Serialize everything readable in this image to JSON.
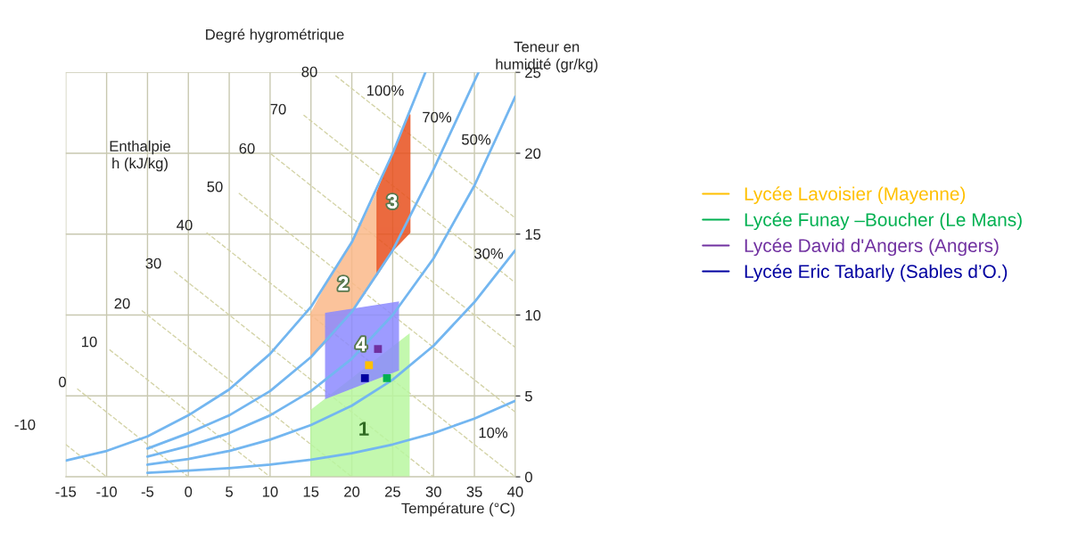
{
  "chart_data": {
    "type": "line",
    "xlabel": "Température (°C)",
    "ylabel": "Teneur en\nhumidité (gr/kg)",
    "xlim": [
      -15,
      40
    ],
    "xticks": [
      -15,
      -10,
      -5,
      0,
      5,
      10,
      15,
      20,
      25,
      30,
      35,
      40
    ],
    "ylim": [
      0,
      25
    ],
    "yticks": [
      0,
      5,
      10,
      15,
      20,
      25
    ],
    "grid": true,
    "legend": "right",
    "series": [
      {
        "type": "line",
        "color": "#d4d4a8",
        "line_style": "dashed",
        "x": [
          -15,
          -10
        ],
        "values": [
          2.0,
          0
        ]
      },
      {
        "type": "line",
        "color": "#d4d4a8",
        "line_style": "dashed",
        "x": [
          -13.6,
          0
        ],
        "values": [
          5.44,
          0
        ]
      },
      {
        "type": "line",
        "color": "#d4d4a8",
        "line_style": "dashed",
        "x": [
          -9.65,
          10
        ],
        "values": [
          7.86,
          0
        ]
      },
      {
        "type": "line",
        "color": "#d4d4a8",
        "line_style": "dashed",
        "x": [
          -5.7,
          20
        ],
        "values": [
          10.28,
          0
        ]
      },
      {
        "type": "line",
        "color": "#d4d4a8",
        "line_style": "dashed",
        "x": [
          -1.74,
          30
        ],
        "values": [
          12.7,
          0
        ]
      },
      {
        "type": "line",
        "color": "#d4d4a8",
        "line_style": "dashed",
        "x": [
          2.22,
          40
        ],
        "values": [
          15.1,
          0
        ]
      },
      {
        "type": "line",
        "color": "#d4d4a8",
        "line_style": "dashed",
        "x": [
          6.17,
          40
        ],
        "values": [
          17.53,
          4.0
        ]
      },
      {
        "type": "line",
        "color": "#d4d4a8",
        "line_style": "dashed",
        "x": [
          10.1,
          40
        ],
        "values": [
          19.96,
          8.0
        ]
      },
      {
        "type": "line",
        "color": "#d4d4a8",
        "line_style": "dashed",
        "x": [
          14.1,
          40
        ],
        "values": [
          22.36,
          12.0
        ]
      },
      {
        "type": "line",
        "color": "#d4d4a8",
        "line_style": "dashed",
        "x": [
          18.0,
          40
        ],
        "values": [
          24.8,
          16.0
        ]
      },
      {
        "type": "area",
        "color": "#b9f7a0",
        "x": [
          15,
          27,
          27,
          15
        ],
        "values": [
          4.1,
          8.8,
          0,
          0
        ]
      },
      {
        "type": "area",
        "color": "#fbb98a",
        "x": [
          15,
          17,
          19,
          21,
          23.1,
          23.1,
          21,
          19,
          17,
          15
        ],
        "values": [
          10.1,
          12.0,
          13.7,
          15.4,
          17.6,
          12.5,
          10.9,
          9.6,
          8.4,
          7.4
        ]
      },
      {
        "type": "area",
        "color": "#e8501e",
        "x": [
          23.1,
          25,
          27.1,
          27.1,
          25,
          23.1
        ],
        "values": [
          17.6,
          20.0,
          22.4,
          15.1,
          14.0,
          12.5
        ]
      },
      {
        "type": "area",
        "color": "#8c8aff",
        "x": [
          16.8,
          25.7,
          25.7,
          16.8
        ],
        "values": [
          10.1,
          10.8,
          6.6,
          4.85
        ]
      },
      {
        "color": "#73b6f0",
        "line_style": "solid",
        "x": [
          -15,
          -10,
          -5,
          0,
          5,
          10,
          15,
          20,
          25,
          29
        ],
        "values": [
          1.0,
          1.6,
          2.5,
          3.8,
          5.4,
          7.6,
          10.5,
          14.5,
          20.0,
          25.0
        ]
      },
      {
        "color": "#73b6f0",
        "line_style": "solid",
        "x": [
          -5,
          0,
          5,
          10,
          15,
          20,
          25,
          30,
          35.5
        ],
        "values": [
          1.75,
          2.7,
          3.8,
          5.3,
          7.4,
          10.2,
          14.0,
          19.0,
          25.0
        ]
      },
      {
        "color": "#73b6f0",
        "line_style": "solid",
        "x": [
          -5,
          0,
          5,
          10,
          15,
          20,
          25,
          30,
          35,
          40
        ],
        "values": [
          1.25,
          1.9,
          2.7,
          3.8,
          5.3,
          7.3,
          10.0,
          13.5,
          18.0,
          23.5
        ]
      },
      {
        "color": "#73b6f0",
        "line_style": "solid",
        "x": [
          -5,
          0,
          5,
          10,
          15,
          20,
          25,
          30,
          35,
          40
        ],
        "values": [
          0.75,
          1.1,
          1.6,
          2.3,
          3.2,
          4.4,
          6.0,
          8.1,
          10.8,
          14.0
        ]
      },
      {
        "color": "#73b6f0",
        "line_style": "solid",
        "x": [
          -5,
          0,
          5,
          10,
          15,
          20,
          25,
          30,
          35,
          40
        ],
        "values": [
          0.25,
          0.38,
          0.54,
          0.76,
          1.06,
          1.46,
          2.0,
          2.7,
          3.6,
          4.7
        ]
      },
      {
        "type": "scatter",
        "marker": "square",
        "name": "Lycée Lavoisier (Mayenne)",
        "color": "#ffc000",
        "x": [
          22.1
        ],
        "values": [
          6.9
        ]
      },
      {
        "type": "scatter",
        "marker": "square",
        "name": "Lycée Funay –Boucher (Le Mans)",
        "color": "#00b050",
        "x": [
          24.3
        ],
        "values": [
          6.1
        ]
      },
      {
        "type": "scatter",
        "marker": "square",
        "name": "Lycée David d'Angers (Angers)",
        "color": "#7030a0",
        "x": [
          23.2
        ],
        "values": [
          7.9
        ]
      },
      {
        "type": "scatter",
        "marker": "square",
        "name": "Lycée Eric Tabarly (Sables d’O.)",
        "color": "#0000a0",
        "x": [
          21.6
        ],
        "values": [
          6.1
        ]
      }
    ],
    "annotations": [
      "Degré hygrométrique",
      "Enthalpie\nh (kJ/kg)",
      "100%",
      "70%",
      "50%",
      "30%",
      "10%",
      "80",
      "70",
      "60",
      "50",
      "40",
      "30",
      "20",
      "10",
      "0",
      "-10",
      "3",
      "2",
      "4",
      "1"
    ]
  }
}
